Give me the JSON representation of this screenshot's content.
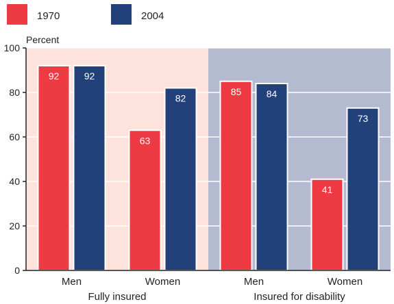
{
  "chart_data": {
    "type": "bar",
    "ylabel": "Percent",
    "ylim": [
      0,
      100
    ],
    "yticks": [
      0,
      20,
      40,
      60,
      80,
      100
    ],
    "grid": true,
    "legend_placement": "top-left",
    "series": [
      {
        "name": "1970",
        "color": "#ee3a43",
        "values": [
          92,
          63,
          85,
          41
        ]
      },
      {
        "name": "2004",
        "color": "#22417a",
        "values": [
          92,
          82,
          84,
          73
        ]
      }
    ],
    "categories": [
      "Men",
      "Women",
      "Men",
      "Women"
    ],
    "groups": [
      {
        "label": "Fully insured",
        "background": "#fde3dc",
        "categories": [
          0,
          1
        ]
      },
      {
        "label": "Insured for disability",
        "background": "#b4bad0",
        "categories": [
          2,
          3
        ]
      }
    ]
  }
}
